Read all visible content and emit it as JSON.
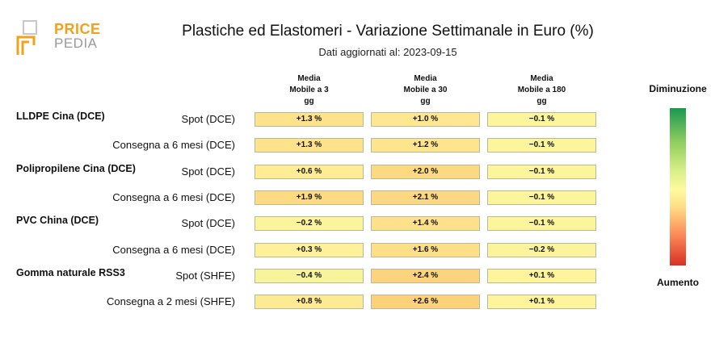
{
  "logo": {
    "word1": "PRICE",
    "word2": "PEDIA"
  },
  "chart_data": {
    "type": "table",
    "title": "Plastiche ed Elastomeri - Variazione Settimanale in Euro (%)",
    "subtitle": "Dati aggiornati al: 2023-09-15",
    "columns": [
      [
        "Media",
        "Mobile a 3",
        "gg"
      ],
      [
        "Media",
        "Mobile a 30",
        "gg"
      ],
      [
        "Media",
        "Mobile a 180",
        "gg"
      ]
    ],
    "groups": [
      {
        "name": "LLDPE Cina (DCE)",
        "rows": [
          {
            "label": "Spot (DCE)",
            "values": [
              1.3,
              1.0,
              -0.1
            ],
            "text": [
              "+1.3 %",
              "+1.0 %",
              "−0.1 %"
            ]
          },
          {
            "label": "Consegna a 6 mesi (DCE)",
            "values": [
              1.3,
              1.2,
              -0.1
            ],
            "text": [
              "+1.3 %",
              "+1.2 %",
              "−0.1 %"
            ]
          }
        ]
      },
      {
        "name": "Polipropilene Cina (DCE)",
        "rows": [
          {
            "label": "Spot (DCE)",
            "values": [
              0.6,
              2.0,
              -0.1
            ],
            "text": [
              "+0.6 %",
              "+2.0 %",
              "−0.1 %"
            ]
          },
          {
            "label": "Consegna a 6 mesi (DCE)",
            "values": [
              1.9,
              2.1,
              -0.1
            ],
            "text": [
              "+1.9 %",
              "+2.1 %",
              "−0.1 %"
            ]
          }
        ]
      },
      {
        "name": "PVC China (DCE)",
        "rows": [
          {
            "label": "Spot (DCE)",
            "values": [
              -0.2,
              1.4,
              -0.1
            ],
            "text": [
              "−0.2 %",
              "+1.4 %",
              "−0.1 %"
            ]
          },
          {
            "label": "Consegna a 6 mesi (DCE)",
            "values": [
              0.3,
              1.6,
              -0.2
            ],
            "text": [
              "+0.3 %",
              "+1.6 %",
              "−0.2 %"
            ]
          }
        ]
      },
      {
        "name": "Gomma naturale RSS3",
        "rows": [
          {
            "label": "Spot (SHFE)",
            "values": [
              -0.4,
              2.4,
              0.1
            ],
            "text": [
              "−0.4 %",
              "+2.4 %",
              "+0.1 %"
            ]
          },
          {
            "label": "Consegna a 2 mesi (SHFE)",
            "values": [
              0.8,
              2.6,
              0.1
            ],
            "text": [
              "+0.8 %",
              "+2.6 %",
              "+0.1 %"
            ]
          }
        ]
      }
    ],
    "legend": {
      "top": "Diminuzione",
      "bottom": "Aumento"
    },
    "colors": {
      "neutral": "#fff59d",
      "increase": "#fdd07a",
      "decrease": "#1a9850"
    }
  }
}
